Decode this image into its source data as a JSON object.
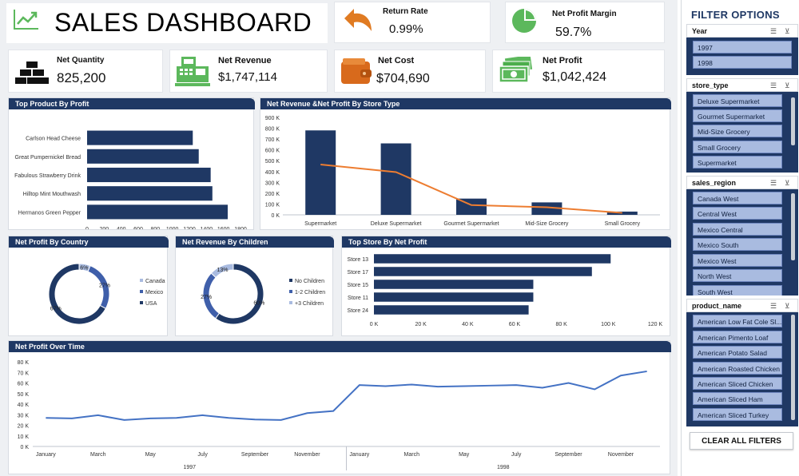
{
  "header": {
    "title": "SALES DASHBOARD",
    "return_rate": {
      "label": "Return Rate",
      "value": "0.99%"
    },
    "net_profit_margin": {
      "label": "Net Profit Margin",
      "value": "59.7%"
    }
  },
  "kpis": {
    "net_quantity": {
      "label": "Net Quantity",
      "value": "825,200"
    },
    "net_revenue": {
      "label": "Net Revenue",
      "value": "$1,747,114"
    },
    "net_cost": {
      "label": "Net Cost",
      "value": "$704,690"
    },
    "net_profit": {
      "label": "Net Profit",
      "value": "$1,042,424"
    }
  },
  "colors": {
    "navy": "#1f3864",
    "bar": "#1f3864",
    "line": "#ed7d31",
    "trend": "#4472c4",
    "donut_light": "#a9bbe0",
    "donut_mid": "#3f5faa",
    "accent_green": "#5cb85c",
    "accent_orange": "#e07b22"
  },
  "chart_data": [
    {
      "type": "bar",
      "title": "Top Product By Profit",
      "orientation": "horizontal",
      "categories": [
        "Carlson Head Cheese",
        "Great Pumpernickel Bread",
        "Fabulous Strawberry Drink",
        "Hilltop Mint Mouthwash",
        "Hermanos Green Pepper"
      ],
      "values": [
        1240,
        1310,
        1450,
        1470,
        1650
      ],
      "xlim": [
        0,
        1800
      ],
      "xticks": [
        "0",
        "200",
        "400",
        "600",
        "800",
        "1000",
        "1200",
        "1400",
        "1600",
        "1800"
      ]
    },
    {
      "type": "bar",
      "title": "Net Revenue &Net Profit By Store Type",
      "categories": [
        "Supermarket",
        "Deluxe Supermarket",
        "Gourmet Supermarket",
        "Mid-Size Grocery",
        "Small Grocery"
      ],
      "series": [
        {
          "name": "Net Revenue",
          "type": "bar",
          "values": [
            780000,
            660000,
            150000,
            115000,
            30000
          ]
        },
        {
          "name": "Net Profit",
          "type": "line",
          "values": [
            465000,
            395000,
            90000,
            70000,
            18000
          ]
        }
      ],
      "ylim": [
        0,
        900000
      ],
      "yticks": [
        "0 K",
        "100 K",
        "200 K",
        "300 K",
        "400 K",
        "500 K",
        "600 K",
        "700 K",
        "800 K",
        "900 K"
      ]
    },
    {
      "type": "pie",
      "title": "Net Profit By Country",
      "donut": true,
      "categories": [
        "Canada",
        "Mexico",
        "USA"
      ],
      "values": [
        6,
        27,
        67
      ],
      "labels": [
        "6%",
        "27%",
        "67%"
      ]
    },
    {
      "type": "pie",
      "title": "Net Revenue By Children",
      "donut": true,
      "categories": [
        "No Children",
        "1-2 Children",
        "+3 Children"
      ],
      "values": [
        60,
        27,
        13
      ],
      "labels": [
        "60%",
        "27%",
        "13%"
      ]
    },
    {
      "type": "bar",
      "title": "Top Store By Net Profit",
      "orientation": "horizontal",
      "categories": [
        "Store 13",
        "Store 17",
        "Store 15",
        "Store 11",
        "Store 24"
      ],
      "values": [
        101000,
        93000,
        68000,
        68000,
        66000
      ],
      "xlim": [
        0,
        120000
      ],
      "xticks": [
        "0 K",
        "20 K",
        "40 K",
        "60 K",
        "80 K",
        "100 K",
        "120 K"
      ]
    },
    {
      "type": "line",
      "title": "Net Profit Over Time",
      "x": [
        "January",
        "February",
        "March",
        "April",
        "May",
        "June",
        "July",
        "August",
        "September",
        "October",
        "November",
        "December",
        "January",
        "February",
        "March",
        "April",
        "May",
        "June",
        "July",
        "August",
        "September",
        "October",
        "November",
        "December"
      ],
      "x_tick_labels": [
        "January",
        "March",
        "May",
        "July",
        "September",
        "November",
        "January",
        "March",
        "May",
        "July",
        "September",
        "November"
      ],
      "groups": [
        "1997",
        "1998"
      ],
      "values": [
        27000,
        26500,
        29500,
        25000,
        26500,
        27000,
        29500,
        27000,
        25500,
        25000,
        31500,
        33500,
        58000,
        57000,
        58500,
        56500,
        57000,
        57500,
        58000,
        55500,
        60000,
        54000,
        67000,
        71000
      ],
      "ylim": [
        0,
        80000
      ],
      "yticks": [
        "0 K",
        "10 K",
        "20 K",
        "30 K",
        "40 K",
        "50 K",
        "60 K",
        "70 K",
        "80 K"
      ]
    }
  ],
  "filters": {
    "title": "FILTER OPTIONS",
    "year": {
      "label": "Year",
      "items": [
        "1997",
        "1998"
      ]
    },
    "store_type": {
      "label": "store_type",
      "items": [
        "Deluxe Supermarket",
        "Gourmet Supermarket",
        "Mid-Size Grocery",
        "Small Grocery",
        "Supermarket"
      ]
    },
    "sales_region": {
      "label": "sales_region",
      "items": [
        "Canada West",
        "Central West",
        "Mexico Central",
        "Mexico South",
        "Mexico West",
        "North West",
        "South West"
      ]
    },
    "product_name": {
      "label": "product_name",
      "items": [
        "American Low Fat Cole Sl...",
        "American Pimento Loaf",
        "American Potato Salad",
        "American Roasted Chicken",
        "American Sliced Chicken",
        "American Sliced Ham",
        "American Sliced Turkey"
      ]
    },
    "clear_label": "CLEAR ALL FILTERS"
  }
}
